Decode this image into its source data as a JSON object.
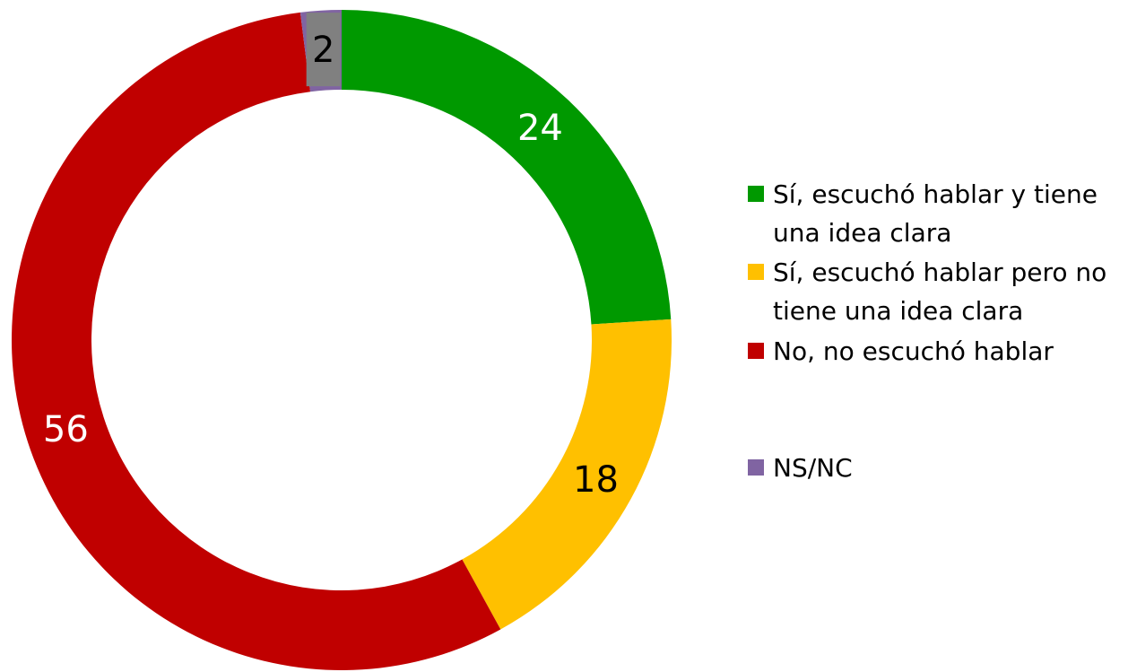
{
  "chart_data": {
    "type": "donut",
    "series": [
      {
        "name": "Sí, escuchó hablar y tiene una idea clara",
        "color": "#009900",
        "value": 24,
        "label_color": "#ffffff"
      },
      {
        "name": "Sí, escuchó hablar pero no tiene una idea clara",
        "color": "#ffc000",
        "value": 18,
        "label_color": "#000000"
      },
      {
        "name": "No, no escuchó hablar",
        "color": "#c00000",
        "value": 56,
        "label_color": "#ffffff"
      },
      {
        "name": "NS/NC",
        "color": "#8064a2",
        "value": 2,
        "label_color": "#000000"
      }
    ],
    "legend": "right"
  }
}
